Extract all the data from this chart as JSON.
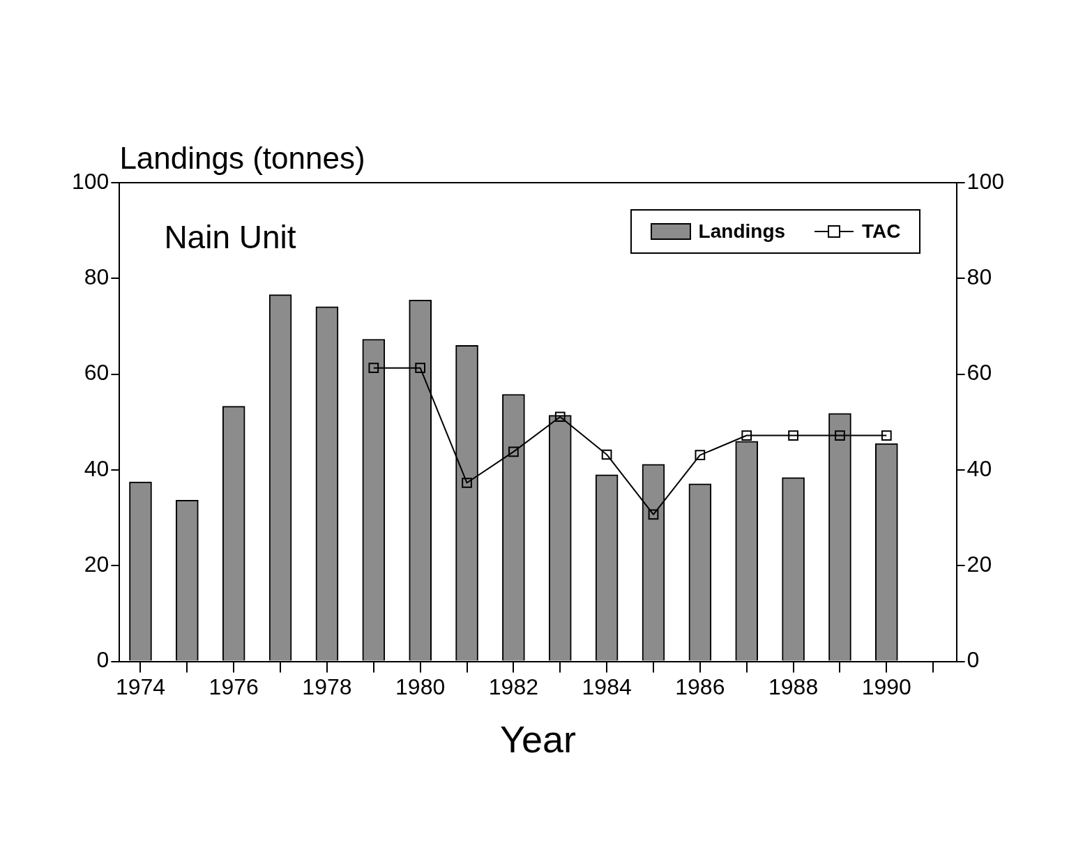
{
  "chart_data": {
    "type": "bar",
    "xlabel": "Year",
    "ylabel": "Landings (tonnes)",
    "annotations": [
      "Nain Unit"
    ],
    "x": [
      1974,
      1975,
      1976,
      1977,
      1978,
      1979,
      1980,
      1981,
      1982,
      1983,
      1984,
      1985,
      1986,
      1987,
      1988,
      1989,
      1990
    ],
    "series": [
      {
        "name": "Landings",
        "color": "#8c8c8c",
        "values": [
          37.5,
          33.7,
          53.3,
          76.6,
          74.1,
          67.3,
          75.5,
          66.0,
          55.8,
          51.4,
          39.0,
          41.2,
          37.1,
          46.0,
          38.4,
          51.8,
          45.5
        ]
      },
      {
        "name": "TAC",
        "type": "line",
        "color": "#000000",
        "marker": "square",
        "values": [
          null,
          null,
          null,
          null,
          null,
          61.3,
          61.3,
          37.3,
          43.8,
          51.1,
          43.2,
          30.7,
          43.1,
          47.2,
          47.2,
          47.2,
          47.2
        ]
      }
    ],
    "xlim": [
      1973.55,
      1991.5
    ],
    "xticks": [
      1974,
      {
        "value": 1975,
        "label": null
      },
      1976,
      {
        "value": 1977,
        "label": null
      },
      1978,
      {
        "value": 1979,
        "label": null
      },
      1980,
      {
        "value": 1981,
        "label": null
      },
      1982,
      {
        "value": 1983,
        "label": null
      },
      1984,
      {
        "value": 1985,
        "label": null
      },
      1986,
      {
        "value": 1987,
        "label": null
      },
      1988,
      {
        "value": 1989,
        "label": null
      },
      1990,
      {
        "value": 1991,
        "label": null
      }
    ],
    "ylim": [
      0,
      100
    ],
    "yticks": [
      0,
      20,
      40,
      60,
      80,
      100
    ],
    "y2lim": [
      0,
      100
    ],
    "y2ticks": [
      0,
      20,
      40,
      60,
      80,
      100
    ],
    "grid": false,
    "legend": "top right"
  }
}
